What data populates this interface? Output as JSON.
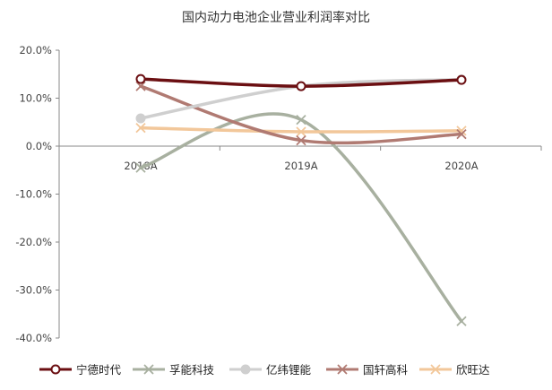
{
  "chart_data": {
    "type": "line",
    "title": "国内动力电池企业营业利润率对比",
    "xlabel": "",
    "ylabel": "",
    "categories": [
      "2018A",
      "2019A",
      "2020A"
    ],
    "ylim": [
      -40,
      20
    ],
    "yticks": [
      "20.0%",
      "10.0%",
      "0.0%",
      "-10.0%",
      "-20.0%",
      "-30.0%",
      "-40.0%"
    ],
    "ytick_values": [
      20,
      10,
      0,
      -10,
      -20,
      -30,
      -40
    ],
    "unit": "%",
    "grid": false,
    "legend_position": "bottom",
    "series": [
      {
        "name": "宁德时代",
        "values": [
          14.0,
          12.5,
          13.8
        ],
        "color": "#6b0f12",
        "marker": "circle-open"
      },
      {
        "name": "孚能科技",
        "values": [
          -4.5,
          5.5,
          -36.5
        ],
        "color": "#a8b0a0",
        "marker": "x"
      },
      {
        "name": "亿纬锂能",
        "values": [
          5.8,
          12.5,
          13.9
        ],
        "color": "#cfcfcf",
        "marker": "circle"
      },
      {
        "name": "国轩高科",
        "values": [
          12.5,
          1.2,
          2.5
        ],
        "color": "#b07a72",
        "marker": "x"
      },
      {
        "name": "欣旺达",
        "values": [
          3.8,
          3.0,
          3.2
        ],
        "color": "#f2c79a",
        "marker": "x"
      }
    ]
  }
}
